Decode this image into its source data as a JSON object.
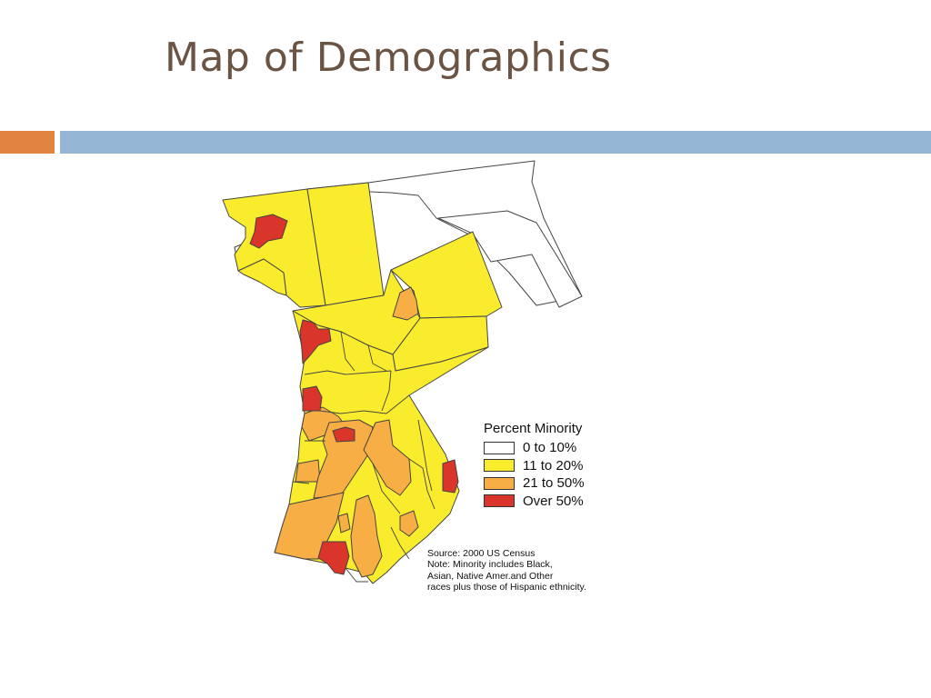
{
  "slide": {
    "title": "Map of Demographics",
    "accent_colors": {
      "orange": "#e0843f",
      "blue": "#95b7d5"
    }
  },
  "legend": {
    "title": "Percent  Minority",
    "items": [
      {
        "label": "0 to 10%",
        "color": "#ffffff"
      },
      {
        "label": "11 to 20%",
        "color": "#f9ec2c"
      },
      {
        "label": "21 to 50%",
        "color": "#f6ae45"
      },
      {
        "label": "Over 50%",
        "color": "#d9352a"
      }
    ]
  },
  "source_note": {
    "lines": [
      "Source: 2000 US Census",
      "Note: Minority includes Black,",
      "Asian, Native Amer.and Other",
      "races plus those of Hispanic ethnicity."
    ]
  }
}
